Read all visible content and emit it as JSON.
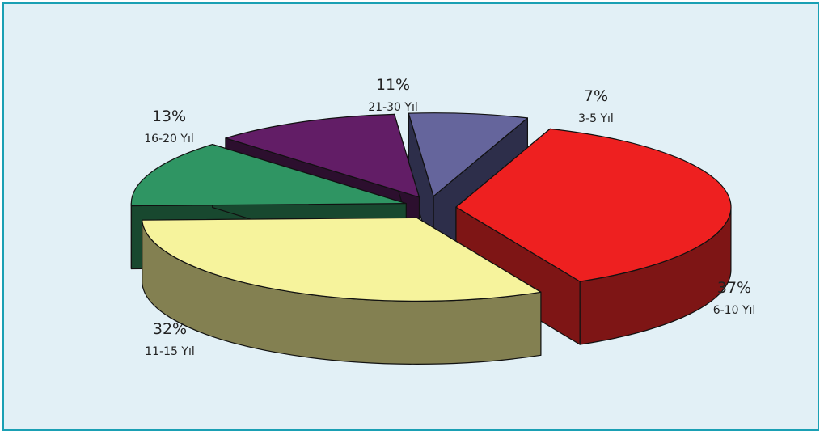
{
  "chart_data": {
    "type": "pie",
    "title": "",
    "slices": [
      {
        "label": "6-10 Yıl",
        "value": 37,
        "value_label": "37%",
        "color": "#ee2020",
        "side": "#7e1515"
      },
      {
        "label": "11-15 Yıl",
        "value": 32,
        "value_label": "32%",
        "color": "#f6f39c",
        "side": "#838051"
      },
      {
        "label": "16-20 Yıl",
        "value": 13,
        "value_label": "13%",
        "color": "#2f9563",
        "side": "#18482f"
      },
      {
        "label": "21-30 Yıl",
        "value": 11,
        "value_label": "11%",
        "color": "#621d66",
        "side": "#2c0f2e"
      },
      {
        "label": "3-5 Yıl",
        "value": 7,
        "value_label": "7%",
        "color": "#65659c",
        "side": "#2d2e4a"
      }
    ],
    "style": "3d-exploded",
    "legend": "none"
  }
}
